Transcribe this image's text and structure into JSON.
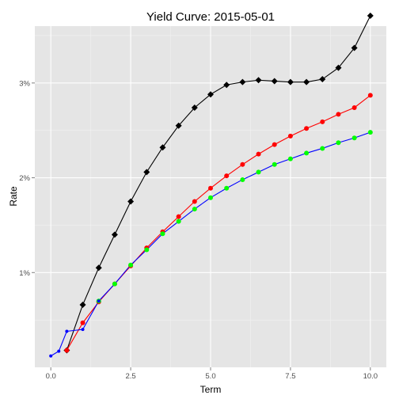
{
  "chart_data": {
    "type": "line",
    "title": "Yield Curve:  2015-05-01",
    "xlabel": "Term",
    "ylabel": "Rate",
    "xlim": [
      -0.5,
      10.5
    ],
    "ylim": [
      0.0,
      3.6
    ],
    "x_ticks": [
      0,
      2.5,
      5,
      7.5,
      10
    ],
    "x_tick_labels": [
      "0.0",
      "2.5",
      "5.0",
      "7.5",
      "10.0"
    ],
    "y_ticks": [
      1,
      2,
      3
    ],
    "y_tick_labels": [
      "1%",
      "2%",
      "3%"
    ],
    "grid": true,
    "legend": "none",
    "colors": {
      "panel_bg": "#e5e5e5",
      "grid_major": "#ffffff",
      "grid_minor": "#f2f2f2"
    },
    "series": [
      {
        "line_color": "#000000",
        "point_color": "#000000",
        "point_shape": "diamond",
        "x": [
          0.5,
          1,
          1.5,
          2,
          2.5,
          3,
          3.5,
          4,
          4.5,
          5,
          5.5,
          6,
          6.5,
          7,
          7.5,
          8,
          8.5,
          9,
          9.5,
          10
        ],
        "y": [
          0.18,
          0.66,
          1.05,
          1.4,
          1.75,
          2.06,
          2.32,
          2.55,
          2.74,
          2.88,
          2.98,
          3.01,
          3.03,
          3.02,
          3.01,
          3.01,
          3.04,
          3.16,
          3.37,
          3.71
        ]
      },
      {
        "line_color": "#ff0000",
        "point_color": "#ff0000",
        "point_shape": "circle",
        "x": [
          0.5,
          1,
          1.5,
          2,
          2.5,
          3,
          3.5,
          4,
          4.5,
          5,
          5.5,
          6,
          6.5,
          7,
          7.5,
          8,
          8.5,
          9,
          9.5,
          10
        ],
        "y": [
          0.18,
          0.47,
          0.69,
          0.88,
          1.07,
          1.26,
          1.43,
          1.59,
          1.75,
          1.89,
          2.02,
          2.14,
          2.25,
          2.35,
          2.44,
          2.52,
          2.59,
          2.67,
          2.74,
          2.87
        ]
      },
      {
        "line_color": "#0000ff",
        "point_color": "#00ff00",
        "point_shape": "circle",
        "x": [
          1.5,
          2,
          2.5,
          3,
          3.5,
          4,
          4.5,
          5,
          5.5,
          6,
          6.5,
          7,
          7.5,
          8,
          8.5,
          9,
          9.5,
          10
        ],
        "y": [
          0.7,
          0.88,
          1.08,
          1.24,
          1.41,
          1.54,
          1.67,
          1.79,
          1.89,
          1.98,
          2.06,
          2.14,
          2.2,
          2.26,
          2.31,
          2.37,
          2.42,
          2.48
        ]
      },
      {
        "line_color": "#0000ff",
        "point_color": "#0000ff",
        "point_shape": "small-circle",
        "x": [
          0.0,
          0.25,
          0.5,
          1.0,
          1.5
        ],
        "y": [
          0.12,
          0.17,
          0.38,
          0.4,
          0.7
        ]
      }
    ]
  }
}
